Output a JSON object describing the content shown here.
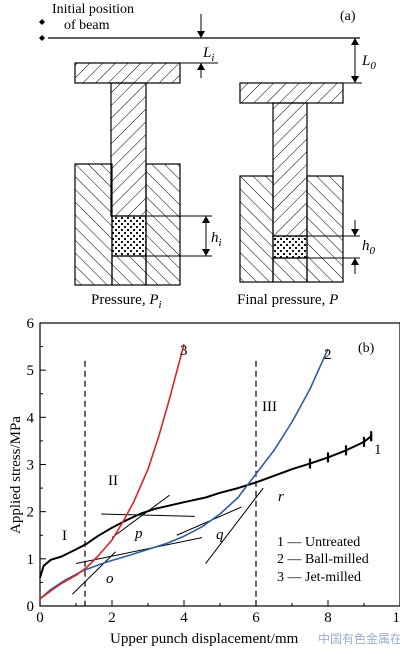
{
  "panel_a": {
    "label": "(a)",
    "initial_position_line1": "Initial position",
    "initial_position_line2": "of beam",
    "dim_L_main": "L",
    "dim_L_sub": "i",
    "dim_L0_main": "L",
    "dim_L0_sub": "0",
    "dim_h_main": "h",
    "dim_h_sub": "i",
    "dim_h0_main": "h",
    "dim_h0_sub": "0",
    "caption_left_text": "Pressure, ",
    "caption_left_sym": "P",
    "caption_left_sub": "i",
    "caption_right_text": "Final pressure, ",
    "caption_right_sym": "P"
  },
  "panel_b": {
    "label": "(b)",
    "region_I": "I",
    "region_II": "II",
    "region_III": "III",
    "point_o": "o",
    "point_p": "p",
    "point_q": "q",
    "point_r": "r",
    "curve_label_1": "1",
    "curve_label_2": "2",
    "curve_label_3": "3",
    "watermark": "中国有色金属在线"
  },
  "chart_data": {
    "type": "line",
    "xlabel": "Upper punch displacement/mm",
    "ylabel": "Applied stress/MPa",
    "xlim": [
      0,
      10
    ],
    "ylim": [
      0,
      6
    ],
    "xticks": [
      "0",
      "2",
      "4",
      "6",
      "8",
      "10"
    ],
    "yticks": [
      "0",
      "1",
      "2",
      "3",
      "4",
      "5",
      "6"
    ],
    "dashed_lines_x": [
      1.25,
      6.0
    ],
    "legend": [
      {
        "key": "1",
        "label": "Untreated"
      },
      {
        "key": "2",
        "label": "Ball-milled"
      },
      {
        "key": "3",
        "label": "Jet-milled"
      }
    ],
    "series": [
      {
        "name": "1",
        "color": "#000000",
        "x": [
          0,
          0.1,
          0.3,
          0.6,
          1.0,
          1.3,
          1.6,
          2.0,
          2.4,
          2.8,
          3.2,
          4.0,
          4.6,
          5.0,
          5.5,
          6.0,
          6.5,
          7.0,
          7.5,
          8.0,
          8.5,
          9.0,
          9.2
        ],
        "y": [
          0.6,
          0.85,
          0.98,
          1.05,
          1.2,
          1.32,
          1.48,
          1.66,
          1.82,
          1.96,
          2.06,
          2.2,
          2.3,
          2.4,
          2.5,
          2.62,
          2.76,
          2.9,
          3.02,
          3.15,
          3.3,
          3.48,
          3.6
        ]
      },
      {
        "name": "2",
        "color": "#2e5d9e",
        "x": [
          0,
          0.3,
          0.7,
          1.2,
          1.8,
          2.5,
          3.0,
          3.5,
          4.0,
          4.5,
          5.0,
          5.5,
          6.0,
          6.5,
          7.0,
          7.5,
          8.0
        ],
        "y": [
          0.15,
          0.35,
          0.55,
          0.75,
          0.92,
          1.08,
          1.2,
          1.32,
          1.48,
          1.68,
          1.95,
          2.3,
          2.8,
          3.3,
          3.9,
          4.6,
          5.45
        ]
      },
      {
        "name": "3",
        "color": "#d7262b",
        "x": [
          0,
          0.3,
          0.6,
          1.0,
          1.3,
          1.6,
          2.0,
          2.3,
          2.6,
          3.0,
          3.3,
          3.6,
          4.0
        ],
        "y": [
          0.15,
          0.32,
          0.48,
          0.65,
          0.82,
          1.05,
          1.4,
          1.78,
          2.2,
          2.9,
          3.6,
          4.4,
          5.55
        ]
      }
    ],
    "tangent_lines": [
      {
        "x": [
          0.9,
          2.1
        ],
        "y": [
          0.25,
          1.15
        ]
      },
      {
        "x": [
          1.7,
          4.3
        ],
        "y": [
          1.95,
          1.9
        ]
      },
      {
        "x": [
          2.0,
          3.6
        ],
        "y": [
          1.45,
          2.35
        ]
      },
      {
        "x": [
          1.0,
          4.5
        ],
        "y": [
          0.9,
          1.45
        ]
      },
      {
        "x": [
          4.6,
          6.2
        ],
        "y": [
          0.9,
          2.5
        ]
      },
      {
        "x": [
          3.8,
          5.6
        ],
        "y": [
          1.5,
          2.1
        ]
      }
    ]
  }
}
